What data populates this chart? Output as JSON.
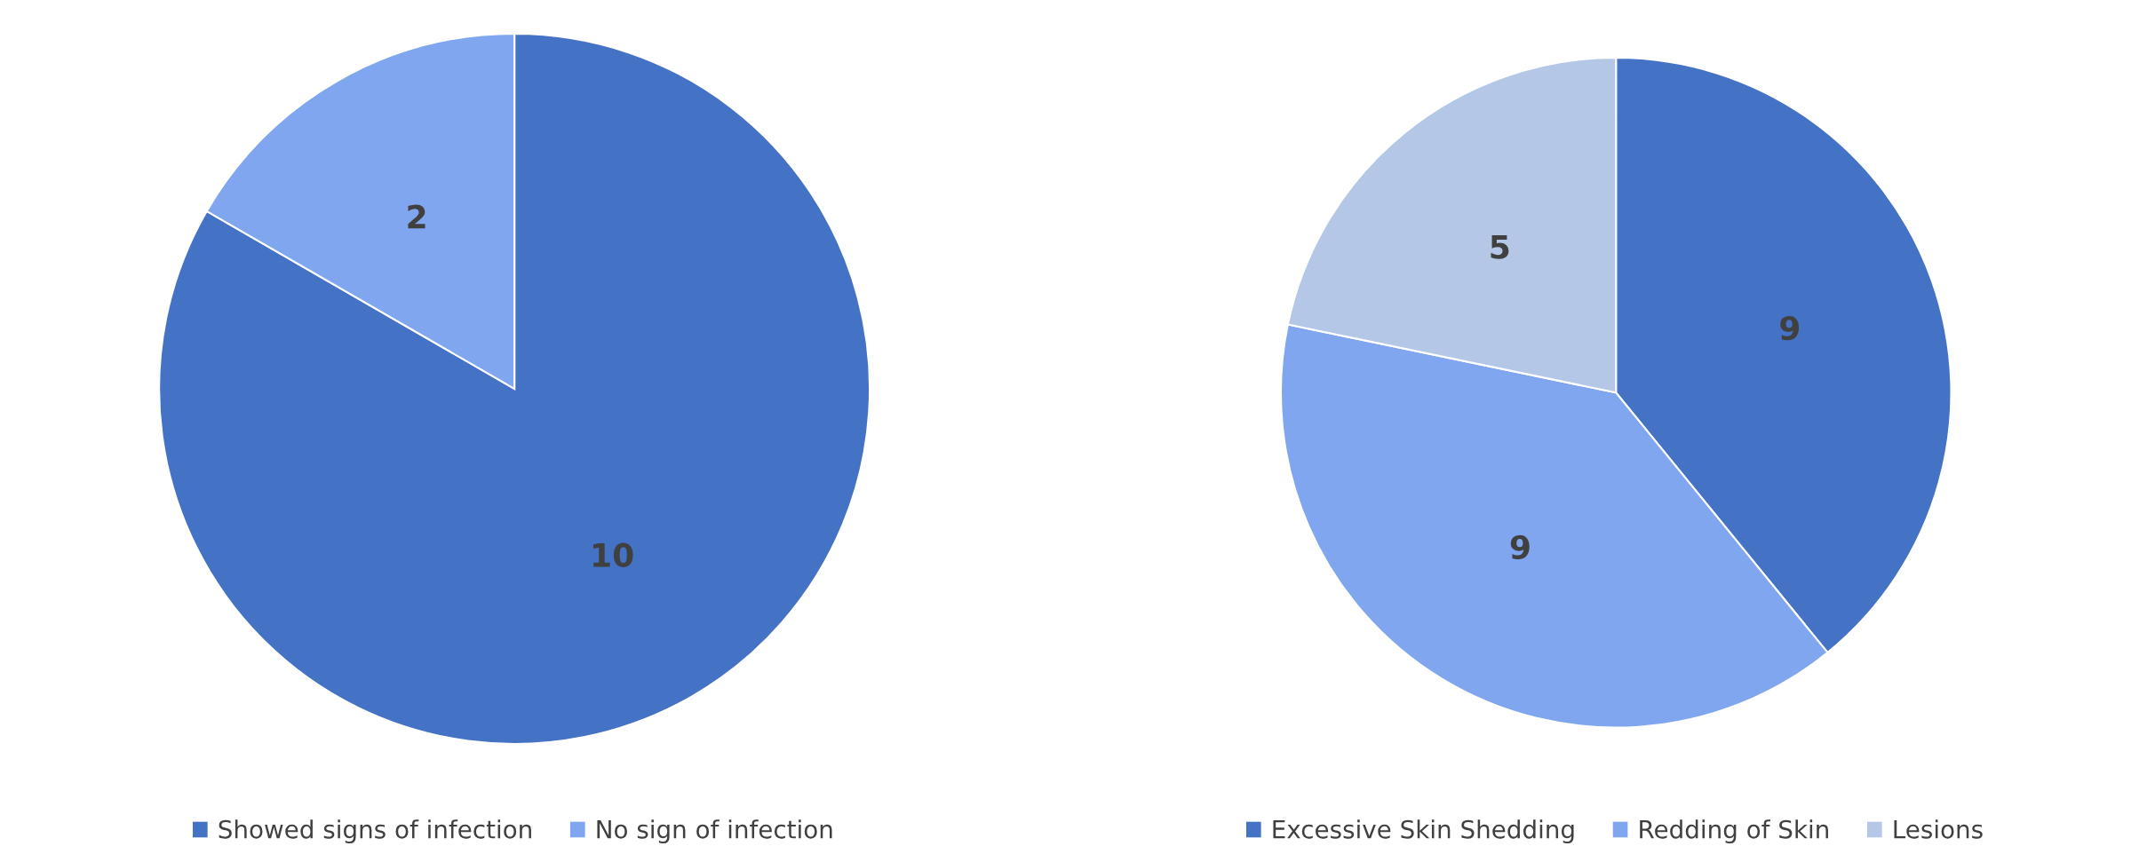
{
  "chart_data": [
    {
      "type": "pie",
      "categories": [
        "Showed signs of infection",
        "No sign of infection"
      ],
      "values": [
        10,
        2
      ],
      "colors": [
        "#4472c4",
        "#7fa6ee"
      ],
      "data_labels": true,
      "legend": "bottom"
    },
    {
      "type": "pie",
      "categories": [
        "Excessive Skin Shedding",
        "Redding of Skin",
        "Lesions"
      ],
      "values": [
        9,
        9,
        5
      ],
      "colors": [
        "#4472c4",
        "#7fa6ee",
        "#b4c7e7"
      ],
      "data_labels": true,
      "legend": "bottom"
    }
  ]
}
